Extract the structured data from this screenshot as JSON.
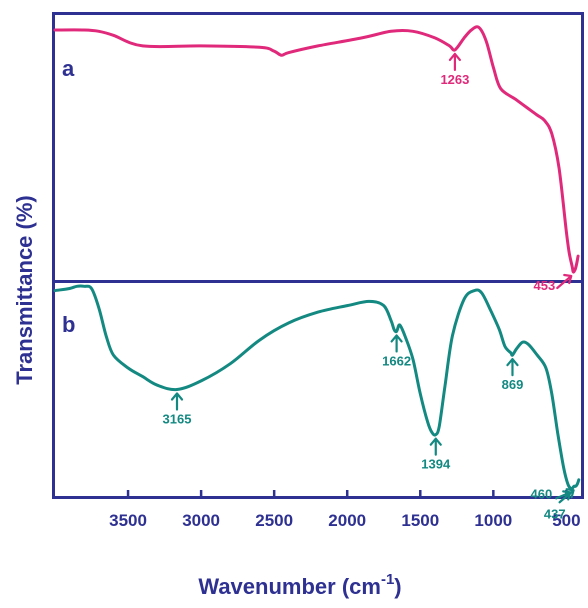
{
  "chart_data": {
    "type": "line",
    "xlabel": "Wavenumber (cm",
    "xlabel_sup": "-1",
    "xlabel_close": ")",
    "ylabel": "Transmittance (%)",
    "xlim": [
      4000,
      400
    ],
    "x_reversed": true,
    "x_ticks": [
      3500,
      3000,
      2500,
      2000,
      1500,
      1000,
      500
    ],
    "grid": false,
    "legend": "none",
    "panels": [
      {
        "label": "a",
        "color": "#e0297a",
        "ylim": [
          0,
          100
        ],
        "x": [
          4000,
          3800,
          3700,
          3600,
          3400,
          3000,
          2600,
          2500,
          2450,
          2400,
          2200,
          1900,
          1700,
          1550,
          1400,
          1300,
          1263,
          1200,
          1150,
          1100,
          1050,
          1000,
          950,
          850,
          750,
          700,
          650,
          600,
          550,
          500,
          480,
          460,
          453,
          440,
          430,
          420
        ],
        "values": [
          94,
          94,
          93.5,
          92,
          88,
          88,
          87.5,
          86,
          84.5,
          85.5,
          88,
          91,
          93.5,
          93.5,
          91,
          88,
          86.5,
          91,
          94,
          95,
          90,
          80,
          72,
          68,
          64,
          62,
          60,
          55,
          42,
          18,
          10,
          5,
          3,
          4,
          6,
          9
        ],
        "annotations": [
          {
            "x": 1263,
            "label": "1263"
          },
          {
            "x": 453,
            "label": "453"
          }
        ]
      },
      {
        "label": "b",
        "color": "#138982",
        "ylim": [
          0,
          100
        ],
        "x": [
          4000,
          3900,
          3850,
          3800,
          3750,
          3700,
          3650,
          3600,
          3500,
          3400,
          3300,
          3165,
          3000,
          2800,
          2600,
          2400,
          2200,
          2000,
          1850,
          1750,
          1700,
          1680,
          1662,
          1640,
          1600,
          1550,
          1500,
          1450,
          1420,
          1394,
          1370,
          1330,
          1280,
          1200,
          1130,
          1080,
          1020,
          960,
          920,
          880,
          869,
          840,
          800,
          760,
          700,
          640,
          600,
          560,
          520,
          490,
          470,
          460,
          448,
          437,
          425,
          415
        ],
        "values": [
          96,
          97,
          98,
          98,
          97,
          88,
          75,
          66,
          60,
          56,
          52,
          50,
          54,
          62,
          73,
          81,
          86,
          89,
          91,
          89,
          82,
          78,
          77,
          80,
          74,
          64,
          48,
          35,
          30,
          29,
          33,
          52,
          75,
          92,
          96,
          95,
          87,
          78,
          70,
          67,
          66,
          69,
          72,
          71,
          66,
          60,
          48,
          30,
          14,
          6,
          4,
          4,
          5,
          5,
          6,
          8
        ],
        "annotations": [
          {
            "x": 3165,
            "label": "3165"
          },
          {
            "x": 1662,
            "label": "1662"
          },
          {
            "x": 1394,
            "label": "1394"
          },
          {
            "x": 869,
            "label": "869"
          },
          {
            "x": 460,
            "label": "460"
          },
          {
            "x": 437,
            "label": "437"
          }
        ]
      }
    ]
  }
}
